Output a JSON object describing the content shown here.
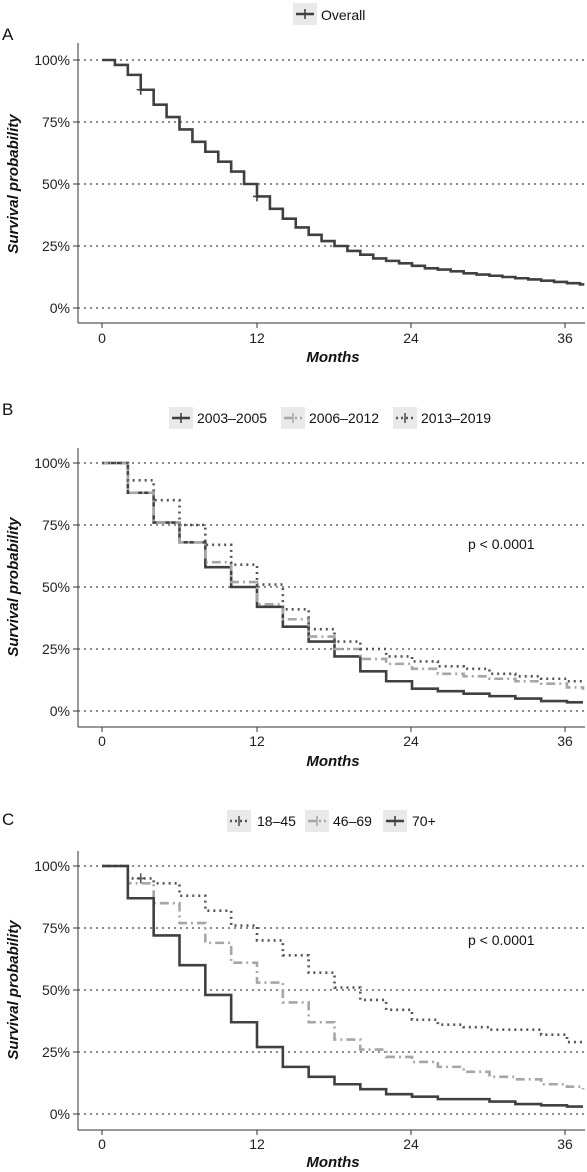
{
  "chart_data": [
    {
      "type": "line",
      "panel": "A",
      "xlabel": "Months",
      "ylabel": "Survival probability",
      "xticks": [
        "0",
        "12",
        "24",
        "36"
      ],
      "yticks": [
        "0%",
        "25%",
        "50%",
        "75%",
        "100%"
      ],
      "xlim": [
        -2,
        38
      ],
      "ylim": [
        0,
        1
      ],
      "grid": "horizontal dotted",
      "legend_position": "top",
      "series": [
        {
          "name": "Overall",
          "color": "#404040",
          "dash": "solid",
          "x": [
            0,
            1,
            2,
            3,
            4,
            5,
            6,
            7,
            8,
            9,
            10,
            11,
            12,
            13,
            14,
            15,
            16,
            17,
            18,
            19,
            20,
            21,
            22,
            23,
            24,
            25,
            26,
            27,
            28,
            29,
            30,
            31,
            32,
            33,
            34,
            35,
            36,
            37,
            38
          ],
          "y": [
            1.0,
            0.98,
            0.94,
            0.88,
            0.82,
            0.77,
            0.72,
            0.67,
            0.63,
            0.59,
            0.55,
            0.5,
            0.45,
            0.4,
            0.36,
            0.325,
            0.295,
            0.27,
            0.25,
            0.23,
            0.215,
            0.2,
            0.19,
            0.18,
            0.17,
            0.16,
            0.155,
            0.148,
            0.14,
            0.135,
            0.13,
            0.125,
            0.12,
            0.115,
            0.11,
            0.105,
            0.1,
            0.095,
            0.09
          ],
          "censor_x": [
            3,
            12
          ]
        }
      ]
    },
    {
      "type": "line",
      "panel": "B",
      "xlabel": "Months",
      "ylabel": "Survival probability",
      "xticks": [
        "0",
        "12",
        "24",
        "36"
      ],
      "yticks": [
        "0%",
        "25%",
        "50%",
        "75%",
        "100%"
      ],
      "xlim": [
        -2,
        38
      ],
      "ylim": [
        0,
        1
      ],
      "grid": "horizontal dotted",
      "legend_position": "top",
      "annotation": "p < 0.0001",
      "series": [
        {
          "name": "2003–2005",
          "color": "#404040",
          "dash": "solid",
          "x": [
            0,
            2,
            4,
            6,
            8,
            10,
            12,
            14,
            16,
            18,
            20,
            22,
            24,
            26,
            28,
            30,
            32,
            34,
            36,
            38
          ],
          "y": [
            1.0,
            0.88,
            0.76,
            0.68,
            0.58,
            0.5,
            0.42,
            0.34,
            0.28,
            0.22,
            0.16,
            0.12,
            0.09,
            0.08,
            0.07,
            0.06,
            0.05,
            0.04,
            0.035,
            0.035
          ]
        },
        {
          "name": "2006–2012",
          "color": "#a6a6a6",
          "dash": "dashdot",
          "x": [
            0,
            2,
            4,
            6,
            8,
            10,
            12,
            14,
            16,
            18,
            20,
            22,
            24,
            26,
            28,
            30,
            32,
            34,
            36,
            38
          ],
          "y": [
            1.0,
            0.88,
            0.76,
            0.68,
            0.6,
            0.52,
            0.43,
            0.37,
            0.3,
            0.25,
            0.21,
            0.19,
            0.17,
            0.15,
            0.14,
            0.13,
            0.12,
            0.11,
            0.095,
            0.085
          ]
        },
        {
          "name": "2013–2019",
          "color": "#555555",
          "dash": "dotted",
          "x": [
            0,
            2,
            4,
            6,
            8,
            10,
            12,
            14,
            16,
            18,
            20,
            22,
            24,
            26,
            28,
            30,
            32,
            34,
            36,
            38
          ],
          "y": [
            1.0,
            0.93,
            0.85,
            0.75,
            0.67,
            0.59,
            0.51,
            0.41,
            0.33,
            0.28,
            0.25,
            0.22,
            0.2,
            0.18,
            0.17,
            0.15,
            0.14,
            0.13,
            0.12,
            0.11
          ]
        }
      ]
    },
    {
      "type": "line",
      "panel": "C",
      "xlabel": "Months",
      "ylabel": "Survival probability",
      "xticks": [
        "0",
        "12",
        "24",
        "36"
      ],
      "yticks": [
        "0%",
        "25%",
        "50%",
        "75%",
        "100%"
      ],
      "xlim": [
        -2,
        38
      ],
      "ylim": [
        0,
        1
      ],
      "grid": "horizontal dotted",
      "legend_position": "top",
      "annotation": "p < 0.0001",
      "series": [
        {
          "name": "18–45",
          "color": "#555555",
          "dash": "dotted",
          "x": [
            0,
            2,
            4,
            6,
            8,
            10,
            12,
            14,
            16,
            18,
            20,
            22,
            24,
            26,
            28,
            30,
            32,
            34,
            36,
            38
          ],
          "y": [
            1.0,
            0.95,
            0.93,
            0.88,
            0.82,
            0.76,
            0.7,
            0.64,
            0.57,
            0.51,
            0.46,
            0.42,
            0.38,
            0.36,
            0.35,
            0.34,
            0.34,
            0.32,
            0.29,
            0.28
          ],
          "censor_x": [
            3
          ]
        },
        {
          "name": "46–69",
          "color": "#a6a6a6",
          "dash": "dashdot",
          "x": [
            0,
            2,
            4,
            6,
            8,
            10,
            12,
            14,
            16,
            18,
            20,
            22,
            24,
            26,
            28,
            30,
            32,
            34,
            36,
            38
          ],
          "y": [
            1.0,
            0.93,
            0.85,
            0.77,
            0.69,
            0.61,
            0.53,
            0.45,
            0.37,
            0.3,
            0.26,
            0.23,
            0.21,
            0.19,
            0.17,
            0.15,
            0.14,
            0.12,
            0.11,
            0.1
          ]
        },
        {
          "name": "70+",
          "color": "#404040",
          "dash": "solid",
          "x": [
            0,
            2,
            4,
            6,
            8,
            10,
            12,
            14,
            16,
            18,
            20,
            22,
            24,
            26,
            28,
            30,
            32,
            34,
            36,
            38
          ],
          "y": [
            1.0,
            0.87,
            0.72,
            0.6,
            0.48,
            0.37,
            0.27,
            0.19,
            0.15,
            0.12,
            0.1,
            0.08,
            0.07,
            0.06,
            0.06,
            0.05,
            0.04,
            0.035,
            0.03,
            0.03
          ]
        }
      ]
    }
  ]
}
